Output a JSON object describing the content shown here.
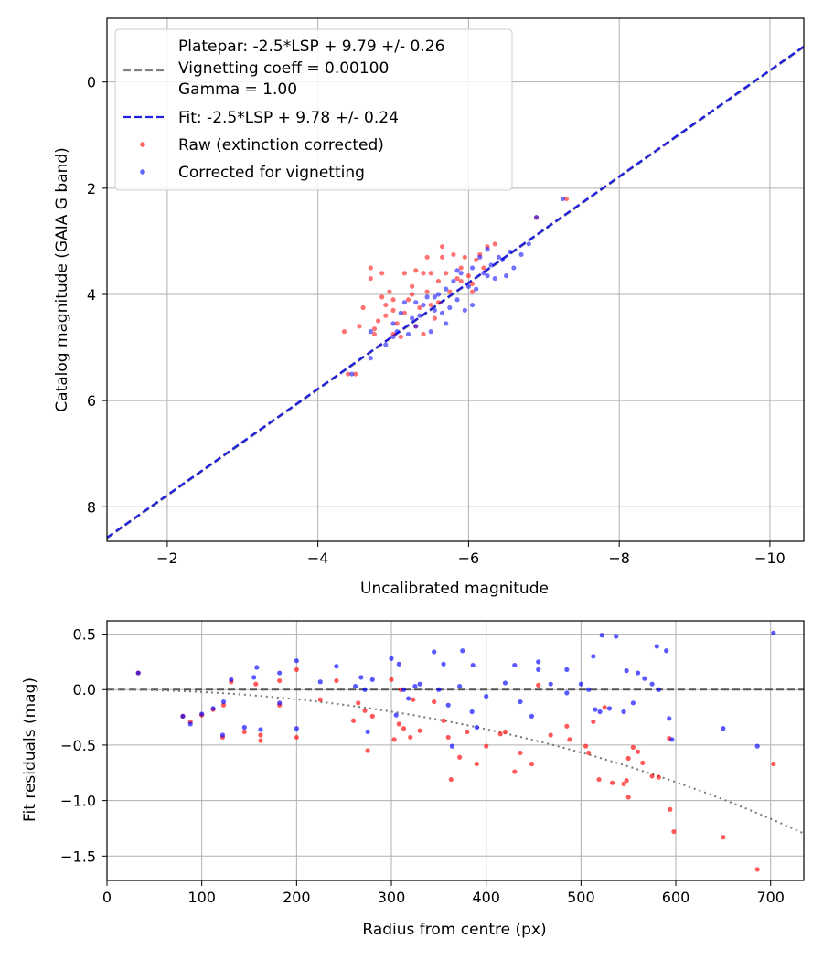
{
  "chart_data": [
    {
      "type": "scatter",
      "xlabel": "Uncalibrated magnitude",
      "ylabel": "Catalog magnitude (GAIA G band)",
      "xlim": [
        -1.2,
        -10.45
      ],
      "ylim": [
        8.65,
        -1.2
      ],
      "x_inverted": true,
      "y_inverted": true,
      "xticks": [
        -2,
        -4,
        -6,
        -8,
        -10
      ],
      "yticks": [
        0,
        2,
        4,
        6,
        8
      ],
      "xtick_labels": [
        "−2",
        "−4",
        "−6",
        "−8",
        "−10"
      ],
      "ytick_labels": [
        "0",
        "2",
        "4",
        "6",
        "8"
      ],
      "grid": true,
      "legend_position": "top-left",
      "legend": [
        {
          "label": "Platepar: -2.5*LSP + 9.79 +/- 0.26\nVignetting coeff = 0.00100\nGamma = 1.00",
          "style": "dashed",
          "color": "#808080"
        },
        {
          "label": "Fit: -2.5*LSP + 9.78 +/- 0.24",
          "style": "dashed",
          "color": "#2222dd"
        },
        {
          "label": "Raw (extinction corrected)",
          "style": "marker",
          "color": "#ff0000"
        },
        {
          "label": "Corrected for vignetting",
          "style": "marker",
          "color": "#0000ff"
        }
      ],
      "lines": [
        {
          "name": "Platepar",
          "slope": 1.0,
          "intercept": 9.79,
          "color": "#808080"
        },
        {
          "name": "Fit",
          "slope": 1.0,
          "intercept": 9.78,
          "color": "#2222dd"
        }
      ],
      "series": [
        {
          "name": "Raw (extinction corrected)",
          "color": "#ff0000",
          "points": [
            [
              -4.4,
              5.5
            ],
            [
              -4.5,
              5.5
            ],
            [
              -4.35,
              4.7
            ],
            [
              -4.55,
              4.6
            ],
            [
              -4.6,
              4.25
            ],
            [
              -4.7,
              3.5
            ],
            [
              -4.7,
              3.7
            ],
            [
              -4.85,
              3.6
            ],
            [
              -4.95,
              3.95
            ],
            [
              -4.75,
              4.75
            ],
            [
              -4.8,
              4.5
            ],
            [
              -4.9,
              4.2
            ],
            [
              -4.9,
              4.4
            ],
            [
              -5.0,
              4.3
            ],
            [
              -5.05,
              4.55
            ],
            [
              -5.1,
              4.8
            ],
            [
              -5.15,
              4.35
            ],
            [
              -5.2,
              4.1
            ],
            [
              -5.25,
              3.85
            ],
            [
              -5.3,
              3.55
            ],
            [
              -5.3,
              4.6
            ],
            [
              -5.35,
              4.25
            ],
            [
              -5.4,
              3.6
            ],
            [
              -5.45,
              3.3
            ],
            [
              -5.45,
              3.95
            ],
            [
              -5.5,
              3.6
            ],
            [
              -5.55,
              4.45
            ],
            [
              -5.6,
              3.75
            ],
            [
              -5.6,
              4.15
            ],
            [
              -5.65,
              3.3
            ],
            [
              -5.7,
              3.6
            ],
            [
              -5.75,
              3.95
            ],
            [
              -5.8,
              3.25
            ],
            [
              -5.85,
              3.7
            ],
            [
              -5.9,
              3.5
            ],
            [
              -5.95,
              3.3
            ],
            [
              -6.0,
              3.65
            ],
            [
              -6.05,
              3.8
            ],
            [
              -6.1,
              3.35
            ],
            [
              -6.15,
              3.25
            ],
            [
              -6.2,
              3.5
            ],
            [
              -6.25,
              3.1
            ],
            [
              -6.35,
              3.05
            ],
            [
              -6.05,
              3.95
            ],
            [
              -5.4,
              4.75
            ],
            [
              -5.0,
              4.75
            ],
            [
              -4.75,
              4.65
            ],
            [
              -5.25,
              4.0
            ],
            [
              -5.15,
              3.6
            ],
            [
              -5.65,
              3.1
            ],
            [
              -6.9,
              2.55
            ],
            [
              -7.3,
              2.2
            ],
            [
              -5.0,
              4.1
            ],
            [
              -5.5,
              4.2
            ],
            [
              -5.9,
              3.75
            ],
            [
              -4.85,
              4.05
            ]
          ]
        },
        {
          "name": "Corrected for vignetting",
          "color": "#0000ff",
          "points": [
            [
              -4.45,
              5.5
            ],
            [
              -4.7,
              5.2
            ],
            [
              -4.7,
              4.7
            ],
            [
              -4.9,
              4.95
            ],
            [
              -5.0,
              4.55
            ],
            [
              -5.05,
              4.7
            ],
            [
              -5.1,
              4.35
            ],
            [
              -5.2,
              4.75
            ],
            [
              -5.3,
              4.6
            ],
            [
              -5.3,
              4.15
            ],
            [
              -5.35,
              4.4
            ],
            [
              -5.4,
              4.2
            ],
            [
              -5.5,
              4.7
            ],
            [
              -5.55,
              4.3
            ],
            [
              -5.6,
              4.0
            ],
            [
              -5.65,
              4.35
            ],
            [
              -5.7,
              3.9
            ],
            [
              -5.75,
              4.25
            ],
            [
              -5.8,
              3.75
            ],
            [
              -5.85,
              4.1
            ],
            [
              -5.9,
              3.6
            ],
            [
              -5.95,
              4.3
            ],
            [
              -6.0,
              3.85
            ],
            [
              -6.05,
              3.5
            ],
            [
              -6.1,
              3.9
            ],
            [
              -6.15,
              3.3
            ],
            [
              -6.2,
              3.6
            ],
            [
              -6.25,
              3.15
            ],
            [
              -6.3,
              3.45
            ],
            [
              -6.35,
              3.7
            ],
            [
              -6.45,
              3.35
            ],
            [
              -6.55,
              3.2
            ],
            [
              -6.6,
              3.5
            ],
            [
              -6.7,
              3.25
            ],
            [
              -6.8,
              3.05
            ],
            [
              -6.9,
              2.55
            ],
            [
              -7.25,
              2.2
            ],
            [
              -5.45,
              4.05
            ],
            [
              -5.85,
              3.55
            ],
            [
              -6.25,
              3.65
            ],
            [
              -5.15,
              4.15
            ],
            [
              -5.25,
              4.45
            ],
            [
              -6.05,
              4.2
            ],
            [
              -5.7,
              4.55
            ],
            [
              -6.4,
              3.3
            ],
            [
              -5.0,
              4.8
            ],
            [
              -5.55,
              4.05
            ],
            [
              -6.5,
              3.65
            ]
          ]
        }
      ]
    },
    {
      "type": "scatter",
      "xlabel": "Radius from centre (px)",
      "ylabel": "Fit residuals (mag)",
      "xlim": [
        0,
        735
      ],
      "ylim": [
        -1.72,
        0.62
      ],
      "xticks": [
        0,
        100,
        200,
        300,
        400,
        500,
        600,
        700
      ],
      "yticks": [
        0.5,
        0.0,
        -0.5,
        -1.0,
        -1.5
      ],
      "xtick_labels": [
        "0",
        "100",
        "200",
        "300",
        "400",
        "500",
        "600",
        "700"
      ],
      "ytick_labels": [
        "0.5",
        "0.0",
        "−0.5",
        "−1.0",
        "−1.5"
      ],
      "grid": true,
      "lines": [
        {
          "name": "zero",
          "style": "dashed",
          "color": "#555555",
          "y": 0
        },
        {
          "name": "vignetting model",
          "style": "dotted",
          "color": "#777777",
          "coeff": 0.001
        }
      ],
      "series": [
        {
          "name": "Raw (extinction corrected)",
          "color": "#ff0000",
          "points": [
            [
              33,
              0.15
            ],
            [
              80,
              -0.24
            ],
            [
              88,
              -0.29
            ],
            [
              100,
              -0.23
            ],
            [
              112,
              -0.18
            ],
            [
              122,
              -0.43
            ],
            [
              123,
              -0.14
            ],
            [
              131,
              0.07
            ],
            [
              145,
              -0.38
            ],
            [
              157,
              0.05
            ],
            [
              162,
              -0.46
            ],
            [
              162,
              -0.41
            ],
            [
              182,
              0.08
            ],
            [
              182,
              -0.14
            ],
            [
              200,
              0.18
            ],
            [
              200,
              -0.43
            ],
            [
              225,
              -0.09
            ],
            [
              242,
              0.08
            ],
            [
              260,
              -0.28
            ],
            [
              265,
              -0.12
            ],
            [
              272,
              -0.19
            ],
            [
              275,
              -0.55
            ],
            [
              280,
              -0.24
            ],
            [
              300,
              0.09
            ],
            [
              303,
              -0.45
            ],
            [
              308,
              -0.31
            ],
            [
              310,
              0.0
            ],
            [
              313,
              -0.35
            ],
            [
              320,
              -0.43
            ],
            [
              323,
              -0.09
            ],
            [
              330,
              -0.37
            ],
            [
              345,
              -0.11
            ],
            [
              355,
              -0.28
            ],
            [
              360,
              -0.43
            ],
            [
              363,
              -0.81
            ],
            [
              372,
              -0.61
            ],
            [
              380,
              -0.38
            ],
            [
              390,
              -0.67
            ],
            [
              400,
              -0.51
            ],
            [
              415,
              -0.4
            ],
            [
              420,
              -0.38
            ],
            [
              430,
              -0.74
            ],
            [
              436,
              -0.57
            ],
            [
              448,
              -0.67
            ],
            [
              455,
              0.04
            ],
            [
              468,
              -0.41
            ],
            [
              485,
              -0.33
            ],
            [
              488,
              -0.45
            ],
            [
              505,
              -0.51
            ],
            [
              508,
              -0.57
            ],
            [
              513,
              -0.29
            ],
            [
              519,
              -0.81
            ],
            [
              525,
              -0.16
            ],
            [
              533,
              -0.84
            ],
            [
              545,
              -0.85
            ],
            [
              550,
              -0.97
            ],
            [
              550,
              -0.62
            ],
            [
              555,
              -0.52
            ],
            [
              565,
              -0.66
            ],
            [
              575,
              -0.78
            ],
            [
              582,
              -0.79
            ],
            [
              593,
              -0.44
            ],
            [
              594,
              -1.08
            ],
            [
              598,
              -1.28
            ],
            [
              650,
              -1.33
            ],
            [
              686,
              -1.62
            ],
            [
              703,
              -0.67
            ],
            [
              548,
              -0.82
            ],
            [
              560,
              -0.56
            ]
          ]
        },
        {
          "name": "Corrected for vignetting",
          "color": "#0000ff",
          "points": [
            [
              33,
              0.15
            ],
            [
              80,
              -0.24
            ],
            [
              88,
              -0.31
            ],
            [
              100,
              -0.22
            ],
            [
              112,
              -0.17
            ],
            [
              122,
              -0.41
            ],
            [
              123,
              -0.11
            ],
            [
              131,
              0.09
            ],
            [
              145,
              -0.34
            ],
            [
              155,
              0.11
            ],
            [
              158,
              0.2
            ],
            [
              162,
              -0.36
            ],
            [
              182,
              0.15
            ],
            [
              182,
              -0.12
            ],
            [
              200,
              0.26
            ],
            [
              200,
              -0.35
            ],
            [
              225,
              0.07
            ],
            [
              242,
              0.21
            ],
            [
              262,
              0.03
            ],
            [
              268,
              0.11
            ],
            [
              272,
              0.0
            ],
            [
              275,
              -0.38
            ],
            [
              280,
              0.09
            ],
            [
              300,
              0.28
            ],
            [
              305,
              -0.23
            ],
            [
              308,
              0.23
            ],
            [
              313,
              0.0
            ],
            [
              318,
              -0.08
            ],
            [
              325,
              0.03
            ],
            [
              330,
              0.05
            ],
            [
              345,
              0.34
            ],
            [
              350,
              0.0
            ],
            [
              355,
              0.23
            ],
            [
              360,
              -0.14
            ],
            [
              364,
              -0.51
            ],
            [
              372,
              0.03
            ],
            [
              375,
              0.35
            ],
            [
              386,
              0.22
            ],
            [
              390,
              -0.34
            ],
            [
              400,
              -0.06
            ],
            [
              420,
              0.06
            ],
            [
              430,
              0.22
            ],
            [
              436,
              -0.11
            ],
            [
              448,
              -0.24
            ],
            [
              455,
              0.25
            ],
            [
              455,
              0.18
            ],
            [
              468,
              0.05
            ],
            [
              485,
              0.18
            ],
            [
              500,
              0.05
            ],
            [
              508,
              0.0
            ],
            [
              513,
              0.3
            ],
            [
              520,
              -0.2
            ],
            [
              522,
              0.49
            ],
            [
              530,
              -0.17
            ],
            [
              537,
              0.48
            ],
            [
              545,
              -0.2
            ],
            [
              548,
              0.17
            ],
            [
              555,
              -0.12
            ],
            [
              560,
              0.15
            ],
            [
              567,
              0.1
            ],
            [
              575,
              0.05
            ],
            [
              580,
              0.39
            ],
            [
              582,
              0.0
            ],
            [
              590,
              0.35
            ],
            [
              593,
              -0.26
            ],
            [
              596,
              -0.45
            ],
            [
              650,
              -0.35
            ],
            [
              686,
              -0.51
            ],
            [
              703,
              0.51
            ],
            [
              485,
              -0.03
            ],
            [
              515,
              -0.18
            ],
            [
              385,
              -0.2
            ]
          ]
        }
      ]
    }
  ]
}
